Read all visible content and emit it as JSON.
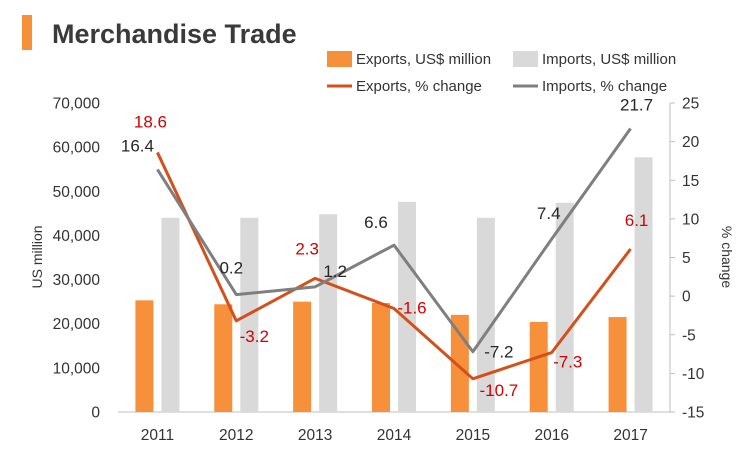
{
  "title": "Merchandise Trade",
  "colors": {
    "accent": "#F7903A",
    "exports_bar": "#F7903A",
    "imports_bar": "#D9D9D9",
    "exports_line": "#D4501B",
    "imports_line": "#7F7F7F",
    "export_label": "#D40000",
    "import_label": "#262626",
    "axis": "#BFBFBF"
  },
  "legend": {
    "exports_bar": "Exports, US$ million",
    "imports_bar": "Imports, US$ million",
    "exports_line": "Exports, % change",
    "imports_line": "Imports, % change"
  },
  "chart_data": {
    "type": "bar",
    "title": "Merchandise Trade",
    "categories": [
      "2011",
      "2012",
      "2013",
      "2014",
      "2015",
      "2016",
      "2017"
    ],
    "ylabel": "US million",
    "y2label": "% change",
    "ylim": [
      0,
      70000
    ],
    "y2lim": [
      -15,
      25
    ],
    "yticks": [
      "0",
      "10,000",
      "20,000",
      "30,000",
      "40,000",
      "50,000",
      "60,000",
      "70,000"
    ],
    "y2ticks": [
      "-15",
      "-10",
      "-5",
      "0",
      "5",
      "10",
      "15",
      "20",
      "25"
    ],
    "legend_position": "top-right",
    "grid": false,
    "series": [
      {
        "name": "Exports, US$ million",
        "type": "bar",
        "axis": "left",
        "values": [
          25300,
          24400,
          25000,
          24700,
          22000,
          20400,
          21500
        ]
      },
      {
        "name": "Imports, US$ million",
        "type": "bar",
        "axis": "left",
        "values": [
          44000,
          44000,
          44800,
          47600,
          44000,
          47400,
          57700
        ]
      },
      {
        "name": "Exports, % change",
        "type": "line",
        "axis": "right",
        "values": [
          18.6,
          -3.2,
          2.3,
          -1.6,
          -10.7,
          -7.3,
          6.1
        ],
        "labels": [
          "18.6",
          "-3.2",
          "2.3",
          "-1.6",
          "-10.7",
          "-7.3",
          "6.1"
        ]
      },
      {
        "name": "Imports, % change",
        "type": "line",
        "axis": "right",
        "values": [
          16.4,
          0.2,
          1.2,
          6.6,
          -7.2,
          7.4,
          21.7
        ],
        "labels": [
          "16.4",
          "0.2",
          "1.2",
          "6.6",
          "-7.2",
          "7.4",
          "21.7"
        ]
      }
    ]
  }
}
